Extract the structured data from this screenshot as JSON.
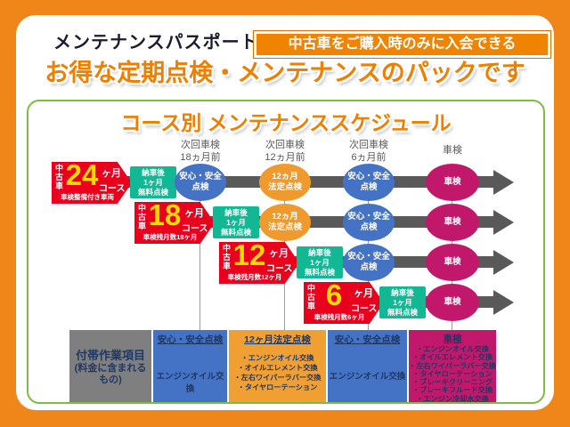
{
  "header": {
    "title": "メンテナンスパスポートとは",
    "badge": "中古車をご購入時のみに入会できる",
    "subtitle": "お得な定期点検・メンテナンスのパックです"
  },
  "schedule": {
    "title": "コース別 メンテナンススケジュール",
    "columns": [
      {
        "line1": "次回車検",
        "line2": "18ヵ月前"
      },
      {
        "line1": "次回車検",
        "line2": "12ヵ月前"
      },
      {
        "line1": "次回車検",
        "line2": "6ヵ月前"
      },
      {
        "line1": "車検",
        "line2": ""
      }
    ],
    "delivery_box": {
      "line1": "納車後",
      "line2": "1ヶ月",
      "line3": "無料点検"
    },
    "events": {
      "safety": {
        "line1": "安心・安全",
        "line2": "点検"
      },
      "legal12": {
        "line1": "12ヵ月",
        "line2": "法定点検"
      },
      "shaken": {
        "line1": "車検"
      }
    },
    "courses": [
      {
        "side": "中古車",
        "number": "24",
        "unit": "ヶ月",
        "label": "コース",
        "note": "車検整備付き車両"
      },
      {
        "side": "中古車",
        "number": "18",
        "unit": "ヶ月",
        "label": "コース",
        "note": "車検残月数18ヶ月"
      },
      {
        "side": "中古車",
        "number": "12",
        "unit": "ヶ月",
        "label": "コース",
        "note": "車検残月数12ヶ月"
      },
      {
        "side": "中古車",
        "number": "6",
        "unit": "ヶ月",
        "label": "コース",
        "note": "車検残月数6ヶ月"
      }
    ]
  },
  "table": {
    "row_label": {
      "title": "付帯作業項目",
      "sub1": "(料金に含まれる",
      "sub2": "もの)"
    },
    "columns": [
      {
        "header": "安心・安全点検",
        "items": [
          "エンジンオイル交換"
        ]
      },
      {
        "header": "12ヶ月法定点検",
        "items": [
          "・エンジンオイル交換",
          "・オイルエレメント交換",
          "・左右ワイパーラバー交換",
          "・タイヤローテーション"
        ]
      },
      {
        "header": "安心・安全点検",
        "items": [
          "エンジンオイル交換"
        ]
      },
      {
        "header": "車検",
        "items": [
          "・エンジンオイル交換",
          "・オイルエレメント交換",
          "・左右ワイパーラバー交換",
          "・タイヤローテーション",
          "・ブレーキクリーニング",
          "・ブレーキフルード交換",
          "・エンジン冷却水交換"
        ]
      }
    ]
  },
  "colors": {
    "background_orange": "#F08519",
    "accent_orange": "#F08300",
    "title_orange": "#F07E00",
    "course_red": "#E8001C",
    "number_yellow": "#FFD800",
    "delivery_green": "#12B893",
    "safety_blue": "#4472C4",
    "legal_orange": "#F0992D",
    "shaken_magenta": "#C2186B",
    "arrow_gray": "#595959",
    "table_gray": "#7F7F7F",
    "border_green": "#7DBB42",
    "navy_text": "#1F3864"
  }
}
